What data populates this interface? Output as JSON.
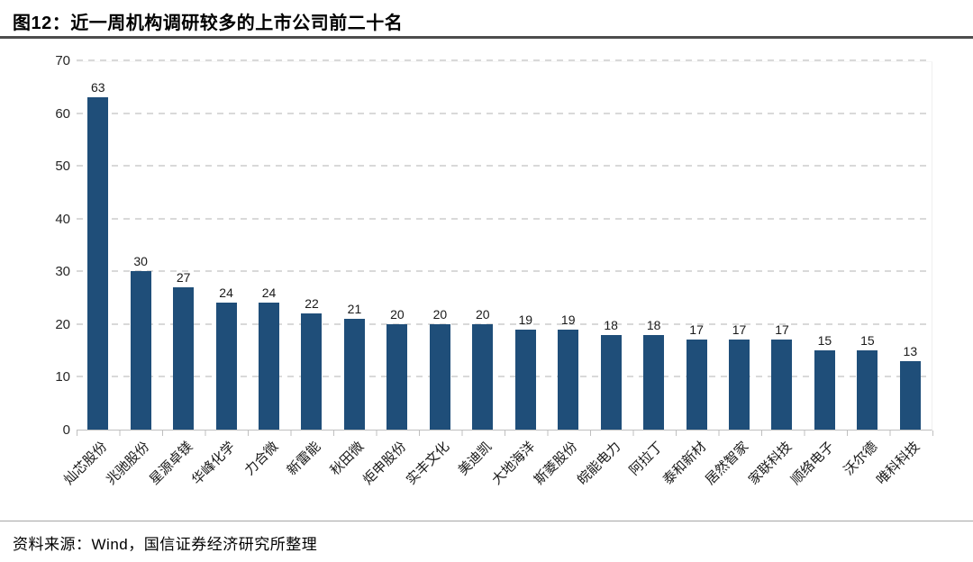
{
  "title": "图12：近一周机构调研较多的上市公司前二十名",
  "source": "资料来源：Wind，国信证券经济研究所整理",
  "colors": {
    "bar": "#1F4E79",
    "gridline": "#D9D9D9",
    "axis_line": "#BFBFBF",
    "title_rule": "#4D4D4D",
    "footer_rule": "#A6A6A6",
    "text": "#000000"
  },
  "chart_data": {
    "type": "bar",
    "title": "近一周机构调研较多的上市公司前二十名",
    "categories": [
      "灿芯股份",
      "兆驰股份",
      "星源卓镁",
      "华峰化学",
      "力合微",
      "新雷能",
      "秋田微",
      "炬申股份",
      "实丰文化",
      "美迪凯",
      "大地海洋",
      "斯菱股份",
      "皖能电力",
      "阿拉丁",
      "泰和新材",
      "居然智家",
      "家联科技",
      "顺络电子",
      "沃尔德",
      "唯科科技"
    ],
    "values": [
      63,
      30,
      27,
      24,
      24,
      22,
      21,
      20,
      20,
      20,
      19,
      19,
      18,
      18,
      17,
      17,
      17,
      15,
      15,
      13
    ],
    "xlabel": "",
    "ylabel": "",
    "ylim": [
      0,
      70
    ],
    "yticks": [
      0,
      10,
      20,
      30,
      40,
      50,
      60,
      70
    ],
    "grid": "horizontal-dashed",
    "legend": "none",
    "data_labels": true
  }
}
